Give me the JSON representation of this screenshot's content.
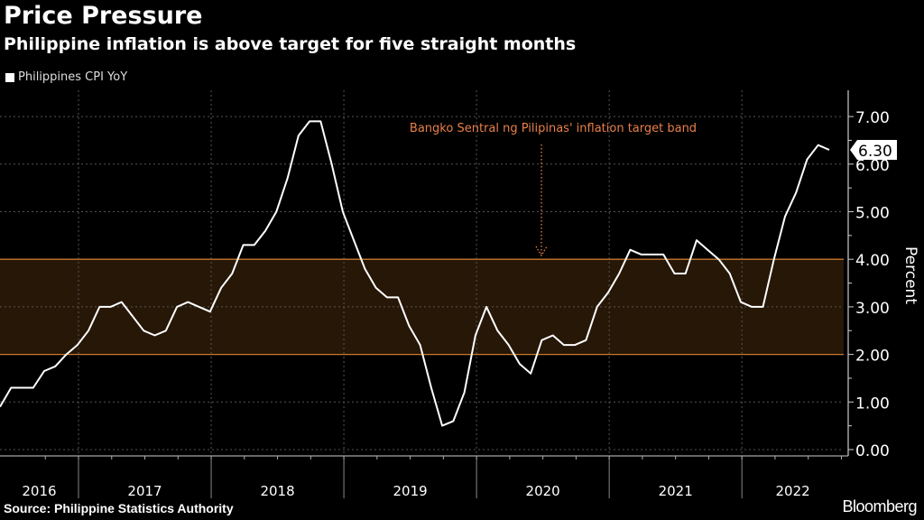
{
  "header": {
    "title": "Price Pressure",
    "subtitle": "Philippine inflation is above target for five straight months"
  },
  "footer": {
    "source": "Source: Philippine Statistics Authority",
    "brand": "Bloomberg"
  },
  "colors": {
    "line": "#ffffff",
    "band_fill": "#261707",
    "band_edge": "#c8782e",
    "annotation": "#e8804a",
    "grid": "#555555"
  },
  "chart_data": {
    "type": "line",
    "title": "Price Pressure",
    "subtitle": "Philippine inflation is above target for five straight months",
    "ylabel": "Percent",
    "xlabel": "",
    "ylim": [
      0,
      7.4
    ],
    "y_ticks": [
      "0.00",
      "1.00",
      "2.00",
      "3.00",
      "4.00",
      "5.00",
      "6.00",
      "7.00"
    ],
    "x_tick_labels": [
      "2016",
      "2017",
      "2018",
      "2019",
      "2020",
      "2021",
      "2022"
    ],
    "frequency": "monthly",
    "start": "2016-05",
    "grid": true,
    "legend": {
      "position": "top-left",
      "entries": [
        "Philippines CPI YoY"
      ]
    },
    "last_value_label": "6.30",
    "annotation": {
      "text": "Bangko Sentral ng Pilipinas' inflation target band",
      "band": [
        2,
        4
      ]
    },
    "series": [
      {
        "name": "Philippines CPI YoY",
        "values": [
          0.9,
          1.3,
          1.3,
          1.3,
          1.65,
          1.75,
          2.0,
          2.2,
          2.5,
          3.0,
          3.0,
          3.1,
          2.8,
          2.5,
          2.4,
          2.5,
          3.0,
          3.1,
          3.0,
          2.9,
          3.4,
          3.7,
          4.3,
          4.3,
          4.6,
          5.0,
          5.7,
          6.6,
          6.9,
          6.9,
          6.0,
          5.0,
          4.4,
          3.8,
          3.4,
          3.2,
          3.2,
          2.6,
          2.2,
          1.3,
          0.5,
          0.6,
          1.2,
          2.4,
          3.0,
          2.5,
          2.2,
          1.8,
          1.6,
          2.3,
          2.4,
          2.2,
          2.2,
          2.3,
          3.0,
          3.3,
          3.7,
          4.2,
          4.1,
          4.1,
          4.1,
          3.7,
          3.7,
          4.4,
          4.2,
          4.0,
          3.7,
          3.1,
          3.0,
          3.0,
          4.0,
          4.9,
          5.4,
          6.1,
          6.4,
          6.3
        ]
      }
    ]
  }
}
